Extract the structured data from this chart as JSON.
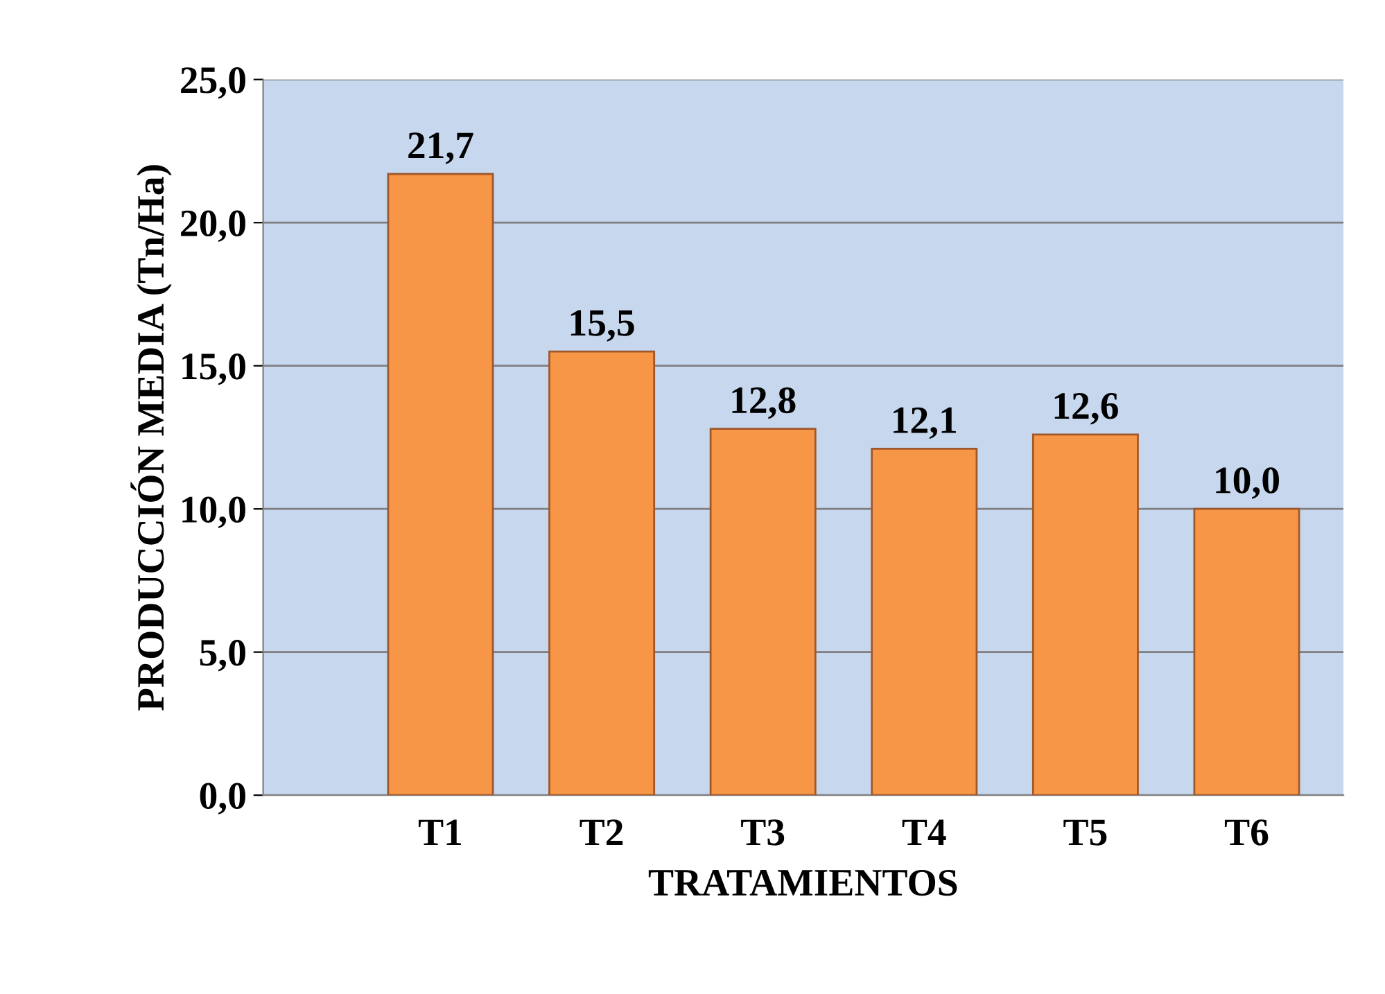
{
  "chart_data": {
    "type": "bar",
    "xlabel": "TRATAMIENTOS",
    "ylabel": "PRODUCCIÓN MEDIA (Tn/Ha)",
    "categories": [
      "T1",
      "T2",
      "T3",
      "T4",
      "T5",
      "T6"
    ],
    "values": [
      21.7,
      15.5,
      12.8,
      12.1,
      12.6,
      10.0
    ],
    "value_labels": [
      "21,7",
      "15,5",
      "12,8",
      "12,1",
      "12,6",
      "10,0"
    ],
    "color": "#f79646",
    "ylim": [
      0,
      25
    ],
    "yticks": [
      {
        "value": 0,
        "label": "0,0"
      },
      {
        "value": 5,
        "label": "5,0"
      },
      {
        "value": 10,
        "label": "10,0"
      },
      {
        "value": 15,
        "label": "15,0"
      },
      {
        "value": 20,
        "label": "20,0"
      },
      {
        "value": 25,
        "label": "25,0"
      }
    ],
    "grid": "y",
    "legend": false
  }
}
